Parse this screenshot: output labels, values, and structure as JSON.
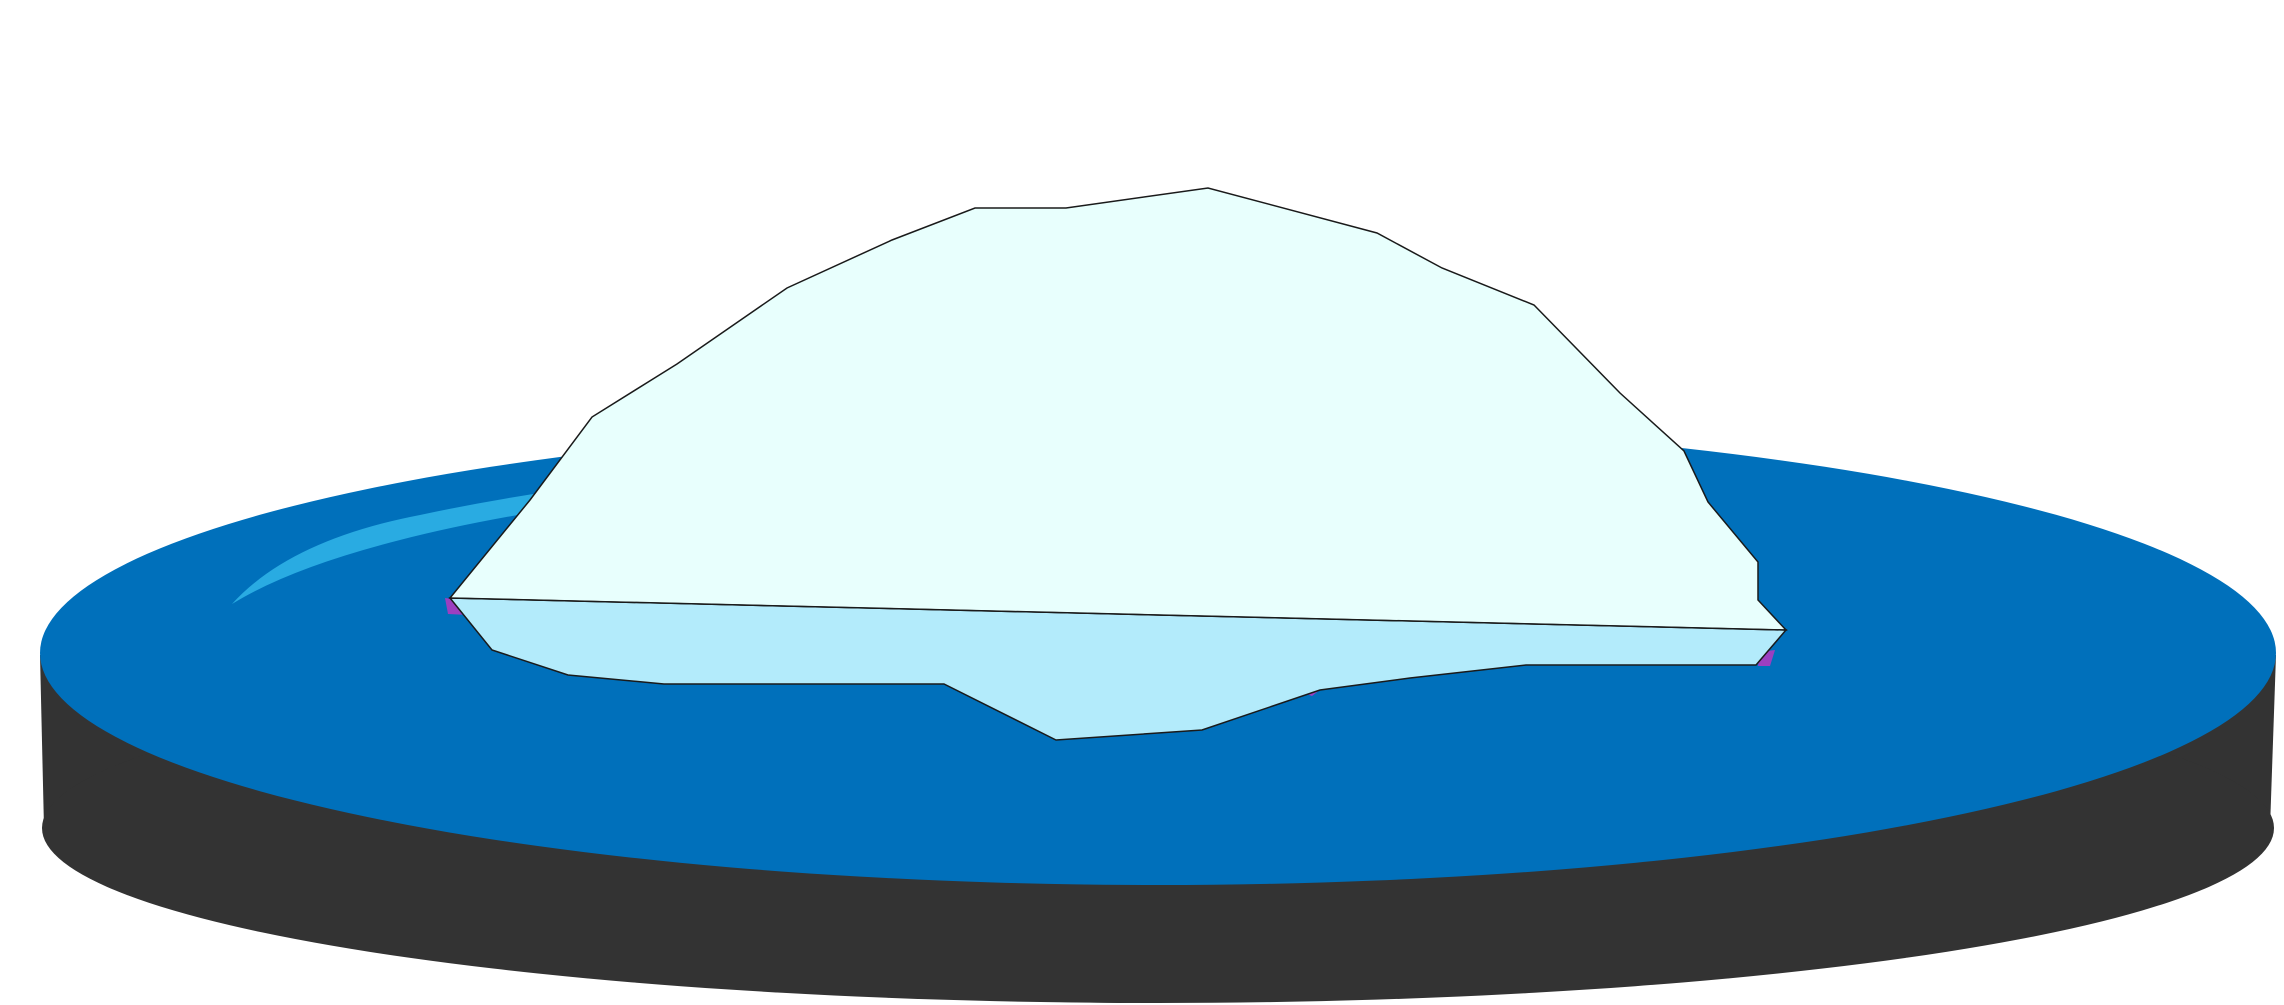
{
  "illustration": {
    "subject": "iceberg-on-water-disc",
    "colors": {
      "background": "#ffffff",
      "disc_side": "#333333",
      "water": "#0070bb",
      "water_highlight": "#29abe2",
      "iceberg_top": "#e8fffd",
      "iceberg_front": "#b3ebfb",
      "iceberg_outline": "#1a1a1a",
      "shadow_accent": "#9b3fc0"
    }
  }
}
